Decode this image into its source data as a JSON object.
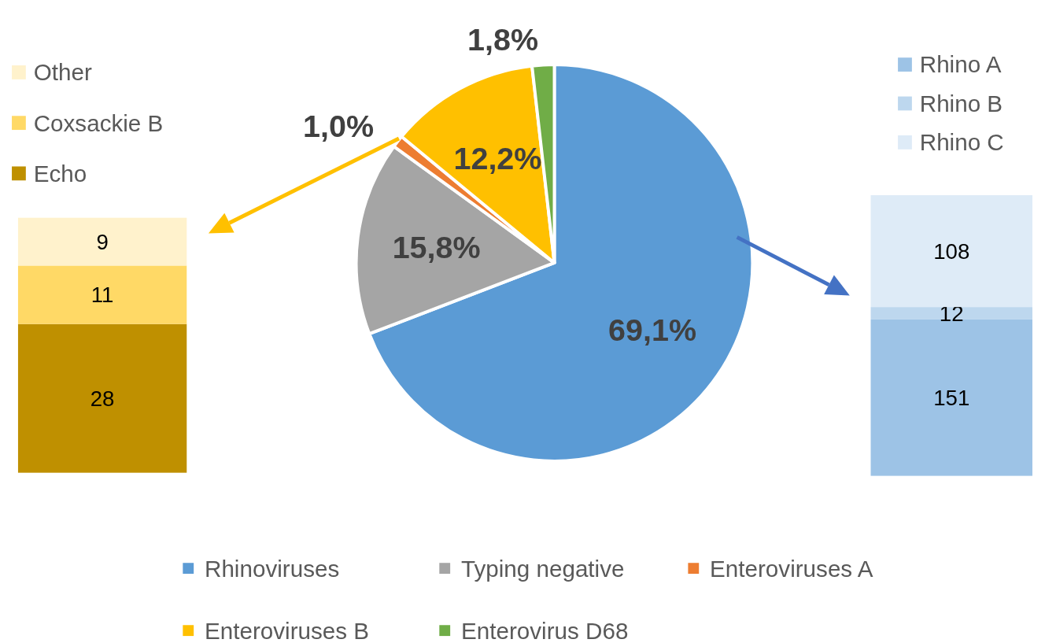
{
  "chart_data": [
    {
      "type": "bar",
      "stacked": true,
      "categories": [
        null
      ],
      "data_labels": true,
      "legend": "top left",
      "series": [
        {
          "name": "Echo",
          "color": "#bf9000",
          "values": [
            28
          ]
        },
        {
          "name": "Coxsackie B",
          "color": "#ffd966",
          "values": [
            11
          ]
        },
        {
          "name": "Other",
          "color": "#fff2cc",
          "values": [
            9
          ]
        }
      ]
    },
    {
      "type": "pie",
      "categories": [
        "Rhinoviruses",
        "Typing negative",
        "Enteroviruses A",
        "Enteroviruses B",
        "Enterovirus D68"
      ],
      "values": [
        69.1,
        15.8,
        1.0,
        12.2,
        1.8
      ],
      "colors": [
        "#5b9bd5",
        "#a5a5a5",
        "#ed7d31",
        "#ffc000",
        "#70ad47"
      ],
      "value_labels": [
        "69,1%",
        "15,8%",
        "1,0%",
        "12,2%",
        "1,8%"
      ],
      "legend": "bottom"
    },
    {
      "type": "bar",
      "stacked": true,
      "categories": [
        null
      ],
      "data_labels": true,
      "legend": "top right",
      "series": [
        {
          "name": "Rhino A",
          "color": "#9dc3e6",
          "values": [
            151
          ]
        },
        {
          "name": "Rhino B",
          "color": "#bdd7ee",
          "values": [
            12
          ]
        },
        {
          "name": "Rhino C",
          "color": "#deebf7",
          "values": [
            108
          ]
        }
      ]
    }
  ]
}
